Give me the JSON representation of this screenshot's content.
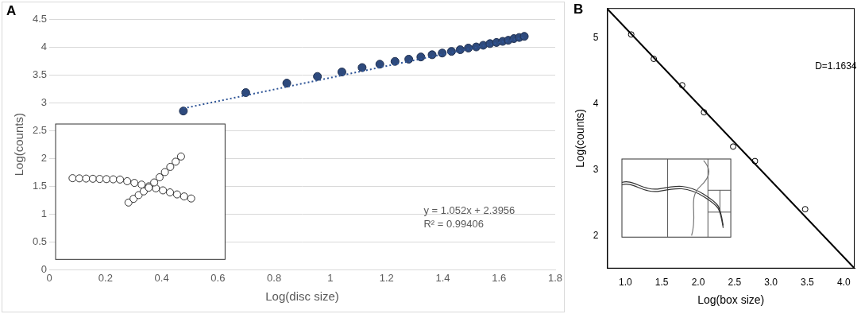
{
  "chart_data": [
    {
      "type": "scatter",
      "title": "A",
      "x_label": "Log(disc size)",
      "y_label": "Log(counts)",
      "x": [
        0.477,
        0.699,
        0.845,
        0.954,
        1.041,
        1.113,
        1.176,
        1.23,
        1.279,
        1.322,
        1.362,
        1.398,
        1.431,
        1.462,
        1.491,
        1.519,
        1.544,
        1.568,
        1.591,
        1.613,
        1.633,
        1.653,
        1.672,
        1.69
      ],
      "values": [
        2.85,
        3.18,
        3.35,
        3.47,
        3.55,
        3.63,
        3.69,
        3.74,
        3.78,
        3.82,
        3.86,
        3.89,
        3.92,
        3.95,
        3.98,
        4.0,
        4.03,
        4.06,
        4.08,
        4.1,
        4.12,
        4.15,
        4.17,
        4.19
      ],
      "color": "#2e4a7d",
      "marker": "circle",
      "fit": {
        "x": [
          0.477,
          1.69
        ],
        "values": [
          2.897,
          4.173
        ],
        "color": "#2f5597",
        "line_style": "dotted"
      },
      "annotations": [
        "y = 1.052x + 2.3956",
        "R² = 0.99406"
      ],
      "xlim": [
        0,
        1.8
      ],
      "xticks": [
        0,
        0.2,
        0.4,
        0.6,
        0.8,
        1,
        1.2,
        1.4,
        1.6,
        1.8
      ],
      "ylim": [
        0,
        4.5
      ],
      "yticks": [
        0,
        0.5,
        1,
        1.5,
        2,
        2.5,
        3,
        3.5,
        4,
        4.5
      ],
      "grid": "y"
    },
    {
      "type": "scatter",
      "title": "B",
      "x_label": "Log(box size)",
      "y_label": "Log(counts)",
      "x": [
        1.08,
        1.39,
        1.78,
        2.08,
        2.48,
        2.78,
        3.47
      ],
      "values": [
        5.05,
        4.68,
        4.28,
        3.87,
        3.35,
        3.13,
        2.4
      ],
      "color": "#000000",
      "marker": "open_circle",
      "fit": {
        "x": [
          0.75,
          4.15
        ],
        "values": [
          5.44,
          1.5
        ],
        "color": "#000000",
        "line_style": "solid"
      },
      "annotations": [
        "D=1.1634"
      ],
      "xlim": [
        0.75,
        4.15
      ],
      "xticks": [
        {
          "value": 1,
          "label": "1.0"
        },
        {
          "value": 1.5,
          "label": "1.5"
        },
        {
          "value": 2,
          "label": "2.0"
        },
        {
          "value": 2.5,
          "label": "2.5"
        },
        {
          "value": 3,
          "label": "3.0"
        },
        {
          "value": 3.5,
          "label": "3.5"
        },
        {
          "value": 4,
          "label": "4.0"
        }
      ],
      "ylim": [
        1.5,
        5.45
      ],
      "yticks": [
        2,
        3,
        4,
        5
      ],
      "grid": false
    }
  ]
}
